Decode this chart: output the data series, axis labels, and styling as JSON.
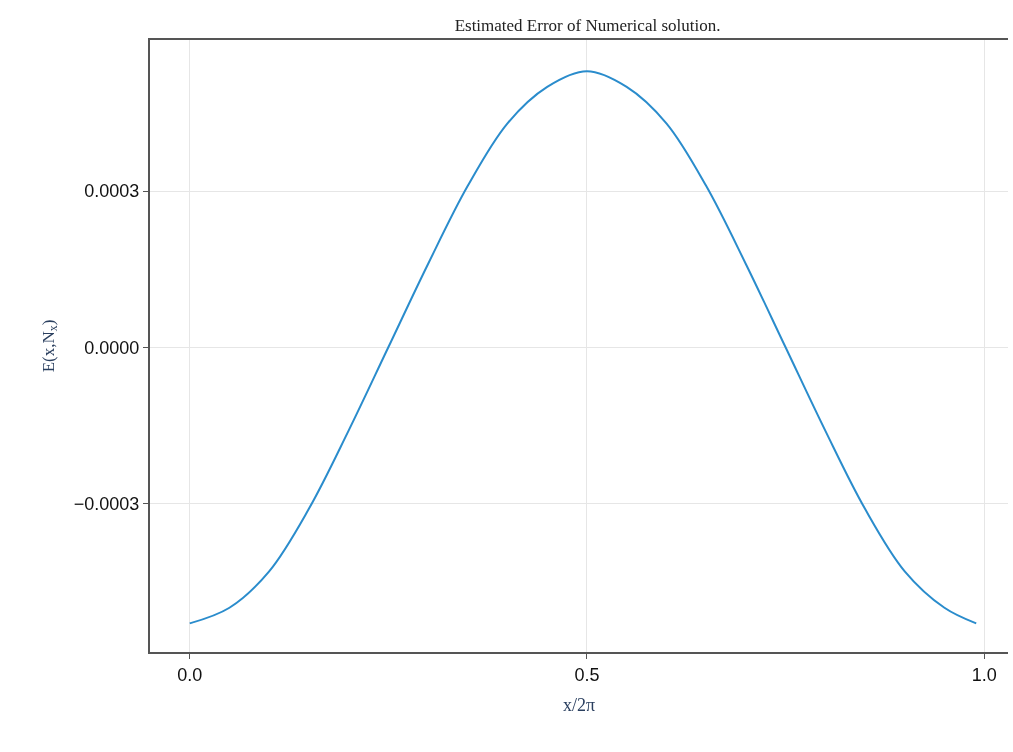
{
  "chart_data": {
    "type": "line",
    "title": "Estimated Error of Numerical solution.",
    "xlabel": "x/2π",
    "ylabel": "E(x,N$_{x}$)",
    "x": [
      0,
      0.05,
      0.1,
      0.15,
      0.2,
      0.25,
      0.3,
      0.35,
      0.4,
      0.45,
      0.5,
      0.55,
      0.6,
      0.65,
      0.7,
      0.75,
      0.8,
      0.85,
      0.9,
      0.95,
      0.99
    ],
    "series": [
      {
        "color": "#2a8ccc",
        "values": [
          -0.00053,
          -0.0005,
          -0.00043,
          -0.00031,
          -0.00016,
          0,
          0.00016,
          0.00031,
          0.00043,
          0.0005,
          0.00053,
          0.0005,
          0.00043,
          0.00031,
          0.00016,
          0,
          -0.00016,
          -0.00031,
          -0.00043,
          -0.0005,
          -0.00053
        ]
      }
    ],
    "xlim": [
      -0.05,
      1.03
    ],
    "ylim": [
      -0.000585,
      0.00059
    ],
    "xticks": [
      {
        "value": 0,
        "label": "0.0"
      },
      {
        "value": 0.5,
        "label": "0.5"
      },
      {
        "value": 1,
        "label": "1.0"
      }
    ],
    "yticks": [
      {
        "value": -0.0003,
        "label": "−0.0003"
      },
      {
        "value": 0,
        "label": "0.0000"
      },
      {
        "value": 0.0003,
        "label": "0.0003"
      }
    ],
    "grid": true,
    "legend": false,
    "marker": "none",
    "line_style": "solid"
  }
}
